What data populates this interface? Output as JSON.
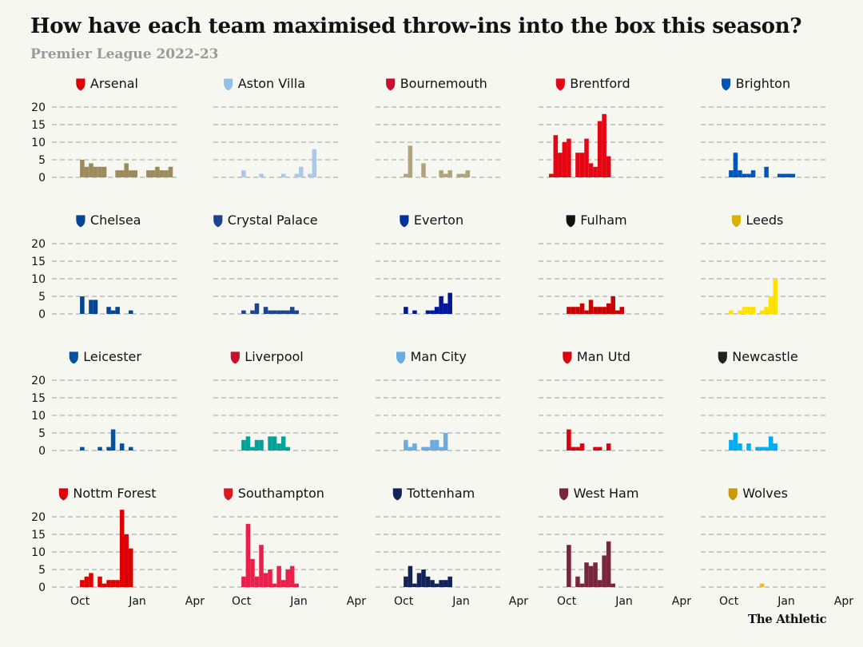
{
  "header": {
    "title": "How have each team maximised throw-ins into the box this season?",
    "subtitle": "Premier League 2022-23",
    "brand": "The Athletic"
  },
  "chart_data": {
    "type": "bar",
    "layout": "small-multiples 5x4",
    "ylim": [
      0,
      20
    ],
    "yticks": [
      "0",
      "5",
      "10",
      "15",
      "20"
    ],
    "xticks": [
      {
        "label": "Oct",
        "index": 4
      },
      {
        "label": "Jan",
        "index": 17
      },
      {
        "label": "Apr",
        "index": 30
      }
    ],
    "grid": true,
    "teams": [
      {
        "name": "Arsenal",
        "color": "#9c8a5a",
        "icon": "arsenal-crest-icon",
        "iconColor": "#db0007",
        "values": [
          0,
          0,
          0,
          0,
          5,
          3,
          4,
          3,
          3,
          3,
          0,
          0,
          2,
          2,
          4,
          2,
          2,
          0,
          0,
          2,
          2,
          3,
          2,
          2,
          3,
          0,
          0,
          0,
          0,
          0,
          0,
          0,
          0,
          0,
          0,
          0,
          0,
          0,
          0,
          0,
          0,
          0,
          0,
          0,
          0,
          0,
          0
        ]
      },
      {
        "name": "Aston Villa",
        "color": "#a9c9ea",
        "icon": "aston-villa-crest-icon",
        "iconColor": "#95bfe5",
        "values": [
          0,
          0,
          0,
          0,
          2,
          0,
          0,
          0,
          1,
          0,
          0,
          0,
          0,
          1,
          0,
          0,
          1,
          3,
          0,
          1,
          8,
          0,
          0,
          0,
          0,
          0,
          0,
          0,
          0,
          0,
          0,
          0,
          0,
          0,
          0,
          0,
          0,
          0,
          0,
          0,
          0,
          0,
          0,
          0,
          0,
          0,
          0
        ]
      },
      {
        "name": "Bournemouth",
        "color": "#b3a37b",
        "icon": "bournemouth-crest-icon",
        "iconColor": "#c8102e",
        "values": [
          0,
          0,
          0,
          0,
          1,
          9,
          0,
          0,
          4,
          0,
          0,
          0,
          2,
          1,
          2,
          0,
          1,
          1,
          2,
          0,
          0,
          0,
          0,
          0,
          0,
          0,
          0,
          0,
          0,
          0,
          0,
          0,
          0,
          0,
          0,
          0,
          0,
          0,
          0,
          0,
          0,
          0,
          0,
          0,
          0,
          0,
          0
        ]
      },
      {
        "name": "Brentford",
        "color": "#e30613",
        "icon": "brentford-crest-icon",
        "iconColor": "#e30613",
        "values": [
          1,
          12,
          7,
          10,
          11,
          0,
          7,
          7,
          11,
          4,
          3,
          16,
          18,
          6,
          0,
          0,
          0,
          0,
          0,
          0,
          0,
          0,
          0,
          0,
          0,
          0,
          0,
          0,
          0,
          0,
          0,
          0,
          0,
          0,
          0,
          0,
          0,
          0,
          0,
          0,
          0,
          0,
          0,
          0,
          0,
          0,
          0
        ]
      },
      {
        "name": "Brighton",
        "color": "#0057b8",
        "icon": "brighton-crest-icon",
        "iconColor": "#0057b8",
        "values": [
          0,
          0,
          0,
          0,
          2,
          7,
          2,
          1,
          1,
          2,
          0,
          0,
          3,
          0,
          0,
          1,
          1,
          1,
          1,
          0,
          0,
          0,
          0,
          0,
          0,
          0,
          0,
          0,
          0,
          0,
          0,
          0,
          0,
          0,
          0,
          0,
          0,
          0,
          0,
          0,
          0,
          0,
          0,
          0,
          0,
          0,
          0
        ]
      },
      {
        "name": "Chelsea",
        "color": "#034694",
        "icon": "chelsea-crest-icon",
        "iconColor": "#034694",
        "values": [
          0,
          0,
          0,
          0,
          5,
          0,
          4,
          4,
          0,
          0,
          2,
          1,
          2,
          0,
          0,
          1,
          0,
          0,
          0,
          0,
          0,
          0,
          0,
          0,
          0,
          0,
          0,
          0,
          0,
          0,
          0,
          0,
          0,
          0,
          0,
          0,
          0,
          0,
          0,
          0,
          0,
          0,
          0,
          0,
          0,
          0,
          0
        ]
      },
      {
        "name": "Crystal Palace",
        "color": "#1b458f",
        "icon": "crystal-palace-crest-icon",
        "iconColor": "#1b458f",
        "values": [
          0,
          0,
          0,
          0,
          1,
          0,
          1,
          3,
          0,
          2,
          1,
          1,
          1,
          1,
          1,
          2,
          1,
          0,
          0,
          0,
          0,
          0,
          0,
          0,
          0,
          0,
          0,
          0,
          0,
          0,
          0,
          0,
          0,
          0,
          0,
          0,
          0,
          0,
          0,
          0,
          0,
          0,
          0,
          0,
          0,
          0,
          0
        ]
      },
      {
        "name": "Everton",
        "color": "#00169c",
        "icon": "everton-crest-icon",
        "iconColor": "#003399",
        "values": [
          0,
          0,
          0,
          0,
          2,
          0,
          1,
          0,
          0,
          1,
          1,
          2,
          5,
          3,
          6,
          0,
          0,
          0,
          0,
          0,
          0,
          0,
          0,
          0,
          0,
          0,
          0,
          0,
          0,
          0,
          0,
          0,
          0,
          0,
          0,
          0,
          0,
          0,
          0,
          0,
          0,
          0,
          0,
          0,
          0,
          0,
          0
        ]
      },
      {
        "name": "Fulham",
        "color": "#cc0000",
        "icon": "fulham-crest-icon",
        "iconColor": "#121212",
        "values": [
          0,
          0,
          0,
          0,
          2,
          2,
          2,
          3,
          1,
          4,
          2,
          2,
          2,
          3,
          5,
          1,
          2,
          0,
          0,
          0,
          0,
          0,
          0,
          0,
          0,
          0,
          0,
          0,
          0,
          0,
          0,
          0,
          0,
          0,
          0,
          0,
          0,
          0,
          0,
          0,
          0,
          0,
          0,
          0,
          0,
          0,
          0
        ]
      },
      {
        "name": "Leeds",
        "color": "#ffe100",
        "icon": "leeds-crest-icon",
        "iconColor": "#d9b300",
        "values": [
          0,
          0,
          0,
          0,
          1,
          0,
          1,
          2,
          2,
          2,
          0,
          1,
          2,
          5,
          10,
          0,
          0,
          0,
          0,
          0,
          0,
          0,
          0,
          0,
          0,
          0,
          0,
          0,
          0,
          0,
          0,
          0,
          0,
          0,
          0,
          0,
          0,
          0,
          0,
          0,
          0,
          0,
          0,
          0,
          0,
          0,
          0
        ]
      },
      {
        "name": "Leicester",
        "color": "#0053a0",
        "icon": "leicester-crest-icon",
        "iconColor": "#0053a0",
        "values": [
          0,
          0,
          0,
          0,
          1,
          0,
          0,
          0,
          1,
          0,
          1,
          6,
          0,
          2,
          0,
          1,
          0,
          0,
          0,
          0,
          0,
          0,
          0,
          0,
          0,
          0,
          0,
          0,
          0,
          0,
          0,
          0,
          0,
          0,
          0,
          0,
          0,
          0,
          0,
          0,
          0,
          0,
          0,
          0,
          0,
          0,
          0
        ]
      },
      {
        "name": "Liverpool",
        "color": "#00a398",
        "icon": "liverpool-crest-icon",
        "iconColor": "#c8102e",
        "values": [
          0,
          0,
          0,
          0,
          3,
          4,
          1,
          3,
          3,
          0,
          4,
          4,
          2,
          4,
          1,
          0,
          0,
          0,
          0,
          0,
          0,
          0,
          0,
          0,
          0,
          0,
          0,
          0,
          0,
          0,
          0,
          0,
          0,
          0,
          0,
          0,
          0,
          0,
          0,
          0,
          0,
          0,
          0,
          0,
          0,
          0,
          0
        ]
      },
      {
        "name": "Man City",
        "color": "#6cabdd",
        "icon": "man-city-crest-icon",
        "iconColor": "#6cabdd",
        "values": [
          0,
          0,
          0,
          0,
          3,
          1,
          2,
          0,
          1,
          1,
          3,
          3,
          1,
          5,
          0,
          0,
          0,
          0,
          0,
          0,
          0,
          0,
          0,
          0,
          0,
          0,
          0,
          0,
          0,
          0,
          0,
          0,
          0,
          0,
          0,
          0,
          0,
          0,
          0,
          0,
          0,
          0,
          0,
          0,
          0,
          0,
          0
        ]
      },
      {
        "name": "Man Utd",
        "color": "#da020e",
        "icon": "man-utd-crest-icon",
        "iconColor": "#da020e",
        "values": [
          0,
          0,
          0,
          0,
          6,
          1,
          1,
          2,
          0,
          0,
          1,
          1,
          0,
          2,
          0,
          0,
          0,
          0,
          0,
          0,
          0,
          0,
          0,
          0,
          0,
          0,
          0,
          0,
          0,
          0,
          0,
          0,
          0,
          0,
          0,
          0,
          0,
          0,
          0,
          0,
          0,
          0,
          0,
          0,
          0,
          0,
          0
        ]
      },
      {
        "name": "Newcastle",
        "color": "#00adee",
        "icon": "newcastle-crest-icon",
        "iconColor": "#241f20",
        "values": [
          0,
          0,
          0,
          0,
          3,
          5,
          2,
          0,
          2,
          0,
          1,
          1,
          1,
          4,
          2,
          0,
          0,
          0,
          0,
          0,
          0,
          0,
          0,
          0,
          0,
          0,
          0,
          0,
          0,
          0,
          0,
          0,
          0,
          0,
          0,
          0,
          0,
          0,
          0,
          0,
          0,
          0,
          0,
          0,
          0,
          0,
          0
        ]
      },
      {
        "name": "Nottm Forest",
        "color": "#dd0000",
        "icon": "nottm-forest-crest-icon",
        "iconColor": "#dd0000",
        "values": [
          0,
          0,
          0,
          0,
          2,
          3,
          4,
          0,
          3,
          1,
          2,
          2,
          2,
          22,
          15,
          11,
          0,
          0,
          0,
          0,
          0,
          0,
          0,
          0,
          0,
          0,
          0,
          0,
          0,
          0,
          0,
          0,
          0,
          0,
          0,
          0,
          0,
          0,
          0,
          0,
          0,
          0,
          0,
          0,
          0,
          0,
          0
        ]
      },
      {
        "name": "Southampton",
        "color": "#e8204b",
        "icon": "southampton-crest-icon",
        "iconColor": "#d71920",
        "values": [
          0,
          0,
          0,
          0,
          3,
          18,
          8,
          3,
          12,
          4,
          5,
          1,
          6,
          2,
          5,
          6,
          1,
          0,
          0,
          0,
          0,
          0,
          0,
          0,
          0,
          0,
          0,
          0,
          0,
          0,
          0,
          0,
          0,
          0,
          0,
          0,
          0,
          0,
          0,
          0,
          0,
          0,
          0,
          0,
          0,
          0,
          0
        ]
      },
      {
        "name": "Tottenham",
        "color": "#132257",
        "icon": "tottenham-crest-icon",
        "iconColor": "#132257",
        "values": [
          0,
          0,
          0,
          0,
          3,
          6,
          1,
          4,
          5,
          3,
          2,
          1,
          2,
          2,
          3,
          0,
          0,
          0,
          0,
          0,
          0,
          0,
          0,
          0,
          0,
          0,
          0,
          0,
          0,
          0,
          0,
          0,
          0,
          0,
          0,
          0,
          0,
          0,
          0,
          0,
          0,
          0,
          0,
          0,
          0,
          0,
          0
        ]
      },
      {
        "name": "West Ham",
        "color": "#7a263a",
        "icon": "west-ham-crest-icon",
        "iconColor": "#7a263a",
        "values": [
          0,
          0,
          0,
          0,
          12,
          0,
          3,
          1,
          7,
          6,
          7,
          2,
          9,
          13,
          1,
          0,
          0,
          0,
          0,
          0,
          0,
          0,
          0,
          0,
          0,
          0,
          0,
          0,
          0,
          0,
          0,
          0,
          0,
          0,
          0,
          0,
          0,
          0,
          0,
          0,
          0,
          0,
          0,
          0,
          0,
          0,
          0
        ]
      },
      {
        "name": "Wolves",
        "color": "#fdb913",
        "icon": "wolves-crest-icon",
        "iconColor": "#c89a00",
        "values": [
          0,
          0,
          0,
          0,
          0,
          0,
          0,
          0,
          0,
          0,
          0,
          1,
          0,
          0,
          0,
          0,
          0,
          0,
          0,
          0,
          0,
          0,
          0,
          0,
          0,
          0,
          0,
          0,
          0,
          0,
          0,
          0,
          0,
          0,
          0,
          0,
          0,
          0,
          0,
          0,
          0,
          0,
          0,
          0,
          0,
          0,
          0
        ]
      }
    ]
  }
}
